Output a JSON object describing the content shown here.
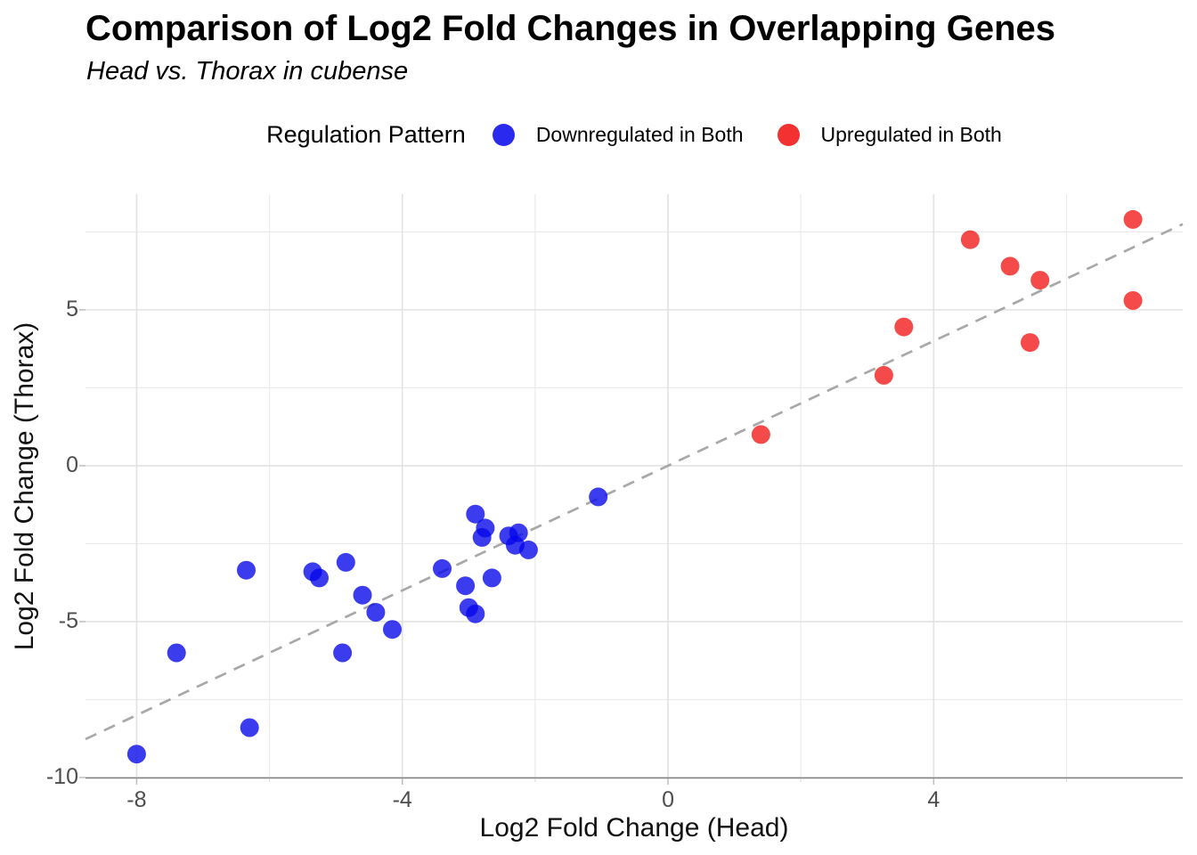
{
  "page": {
    "background": "#ffffff"
  },
  "chart_data": {
    "type": "scatter",
    "title": "Comparison of Log2 Fold Changes in Overlapping Genes",
    "subtitle": "Head vs. Thorax in cubense",
    "xlabel": "Log2 Fold Change (Head)",
    "ylabel": "Log2 Fold Change (Thorax)",
    "x_ticks": [
      -8,
      -4,
      0,
      4
    ],
    "y_ticks": [
      -10,
      -5,
      0,
      5
    ],
    "x_minor_gridlines": [
      -6,
      -2,
      2,
      6
    ],
    "y_minor_gridlines": [
      -7.5,
      -2.5,
      2.5,
      7.5
    ],
    "x_range": [
      -8.77,
      7.75
    ],
    "y_range": [
      -10.0,
      8.71
    ],
    "grid": true,
    "legend": {
      "title": "Regulation Pattern",
      "position": "top",
      "items": [
        {
          "label": "Downregulated in Both",
          "color": "#0505eb"
        },
        {
          "label": "Upregulated in Both",
          "color": "#f20d0d"
        }
      ]
    },
    "reference_line": {
      "type": "identity y = x",
      "style": "dashed",
      "color": "#a8a8a8"
    },
    "colors": {
      "downregulated": "#0505eb",
      "upregulated": "#f20d0d"
    },
    "series": [
      {
        "name": "Downregulated in Both",
        "color": "#0505eb",
        "points": [
          [
            -8.0,
            -9.25
          ],
          [
            -7.4,
            -6.0
          ],
          [
            -6.35,
            -3.35
          ],
          [
            -6.3,
            -8.4
          ],
          [
            -5.35,
            -3.4
          ],
          [
            -5.25,
            -3.6
          ],
          [
            -4.9,
            -6.0
          ],
          [
            -4.85,
            -3.1
          ],
          [
            -4.6,
            -4.15
          ],
          [
            -4.4,
            -4.7
          ],
          [
            -4.15,
            -5.25
          ],
          [
            -3.4,
            -3.3
          ],
          [
            -3.05,
            -3.85
          ],
          [
            -3.0,
            -4.55
          ],
          [
            -2.9,
            -4.75
          ],
          [
            -2.9,
            -1.55
          ],
          [
            -2.8,
            -2.3
          ],
          [
            -2.75,
            -2.0
          ],
          [
            -2.65,
            -3.6
          ],
          [
            -2.4,
            -2.25
          ],
          [
            -2.3,
            -2.55
          ],
          [
            -2.25,
            -2.15
          ],
          [
            -2.1,
            -2.7
          ],
          [
            -1.05,
            -1.0
          ]
        ]
      },
      {
        "name": "Upregulated in Both",
        "color": "#f20d0d",
        "points": [
          [
            1.4,
            1.0
          ],
          [
            3.25,
            2.9
          ],
          [
            3.55,
            4.45
          ],
          [
            4.55,
            7.25
          ],
          [
            5.15,
            6.4
          ],
          [
            5.45,
            3.95
          ],
          [
            5.6,
            5.95
          ],
          [
            7.0,
            5.3
          ],
          [
            7.0,
            7.9
          ]
        ]
      }
    ]
  }
}
